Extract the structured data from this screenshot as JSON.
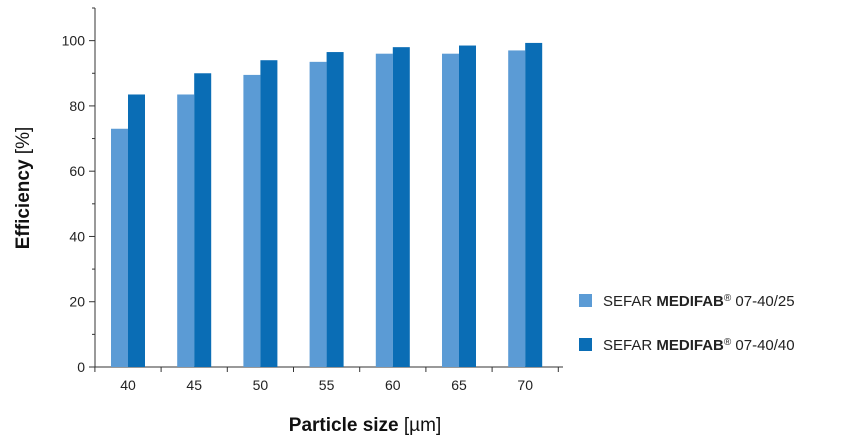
{
  "chart_data": {
    "type": "bar",
    "categories": [
      "40",
      "45",
      "50",
      "55",
      "60",
      "65",
      "70"
    ],
    "series": [
      {
        "name_prefix": "SEFAR ",
        "name_bold": "MEDIFAB",
        "name_sup": "®",
        "name_suffix": " 07-40/25",
        "color": "#5b9bd5",
        "values": [
          73,
          83.5,
          89.5,
          93.5,
          96,
          96,
          97
        ]
      },
      {
        "name_prefix": "SEFAR ",
        "name_bold": "MEDIFAB",
        "name_sup": "®",
        "name_suffix": " 07-40/40",
        "color": "#0a6db5",
        "values": [
          83.5,
          90,
          94,
          96.5,
          98,
          98.5,
          99.3
        ]
      }
    ],
    "xlabel_bold": "Particle size",
    "xlabel_unit": " [µm]",
    "ylabel_bold": "Efficiency",
    "ylabel_unit": " [%]",
    "ylim": [
      0,
      110
    ],
    "yticks": [
      "0",
      "20",
      "40",
      "60",
      "80",
      "100"
    ],
    "legend_position": "right",
    "grid": false
  }
}
